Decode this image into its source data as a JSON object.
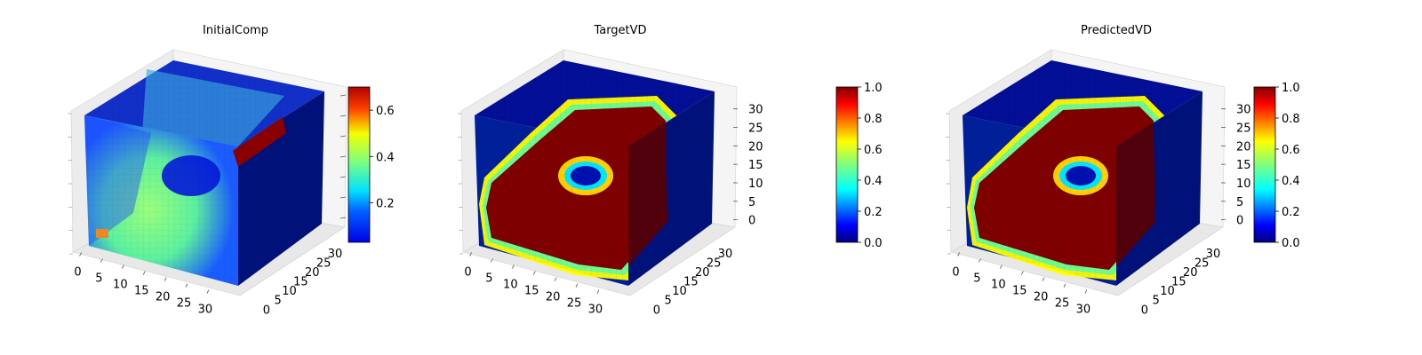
{
  "figure": {
    "colormap": "jet",
    "panels": [
      {
        "title": "InitialComp",
        "colorbar": {
          "min": 0.03,
          "max": 0.7,
          "ticks": [
            "0.2",
            "0.4",
            "0.6"
          ],
          "tick_values": [
            0.2,
            0.4,
            0.6
          ]
        }
      },
      {
        "title": "TargetVD",
        "colorbar": {
          "min": 0.0,
          "max": 1.0,
          "ticks": [
            "0.0",
            "0.2",
            "0.4",
            "0.6",
            "0.8",
            "1.0"
          ],
          "tick_values": [
            0,
            0.2,
            0.4,
            0.6,
            0.8,
            1.0
          ]
        }
      },
      {
        "title": "PredictedVD",
        "colorbar": {
          "min": 0.0,
          "max": 1.0,
          "ticks": [
            "0.0",
            "0.2",
            "0.4",
            "0.6",
            "0.8",
            "1.0"
          ],
          "tick_values": [
            0,
            0.2,
            0.4,
            0.6,
            0.8,
            1.0
          ]
        }
      }
    ]
  },
  "chart_data": [
    {
      "type": "heatmap",
      "title": "InitialComp",
      "subtype": "3d voxel",
      "x_ticks": [
        "0",
        "5",
        "10",
        "15",
        "20",
        "25",
        "30"
      ],
      "y_ticks": [
        "0",
        "5",
        "10",
        "15",
        "20",
        "25",
        "30"
      ],
      "z_ticks": [],
      "xlim": [
        0,
        32
      ],
      "ylim": [
        0,
        32
      ],
      "zlim": [
        0,
        32
      ],
      "value_range": [
        0.03,
        0.7
      ],
      "colorbar_ticks": [
        "0.2",
        "0.4",
        "0.6"
      ]
    },
    {
      "type": "heatmap",
      "title": "TargetVD",
      "subtype": "3d voxel",
      "x_ticks": [
        "0",
        "5",
        "10",
        "15",
        "20",
        "25",
        "30"
      ],
      "y_ticks": [
        "0",
        "5",
        "10",
        "15",
        "20",
        "25",
        "30"
      ],
      "z_ticks": [
        "0",
        "5",
        "10",
        "15",
        "20",
        "25",
        "30"
      ],
      "xlim": [
        0,
        32
      ],
      "ylim": [
        0,
        32
      ],
      "zlim": [
        0,
        32
      ],
      "value_range": [
        0.0,
        1.0
      ],
      "colorbar_ticks": [
        "0.0",
        "0.2",
        "0.4",
        "0.6",
        "0.8",
        "1.0"
      ]
    },
    {
      "type": "heatmap",
      "title": "PredictedVD",
      "subtype": "3d voxel",
      "x_ticks": [
        "0",
        "5",
        "10",
        "15",
        "20",
        "25",
        "30"
      ],
      "y_ticks": [
        "0",
        "5",
        "10",
        "15",
        "20",
        "25",
        "30"
      ],
      "z_ticks": [
        "0",
        "5",
        "10",
        "15",
        "20",
        "25",
        "30"
      ],
      "xlim": [
        0,
        32
      ],
      "ylim": [
        0,
        32
      ],
      "zlim": [
        0,
        32
      ],
      "value_range": [
        0.0,
        1.0
      ],
      "colorbar_ticks": [
        "0.0",
        "0.2",
        "0.4",
        "0.6",
        "0.8",
        "1.0"
      ]
    }
  ]
}
